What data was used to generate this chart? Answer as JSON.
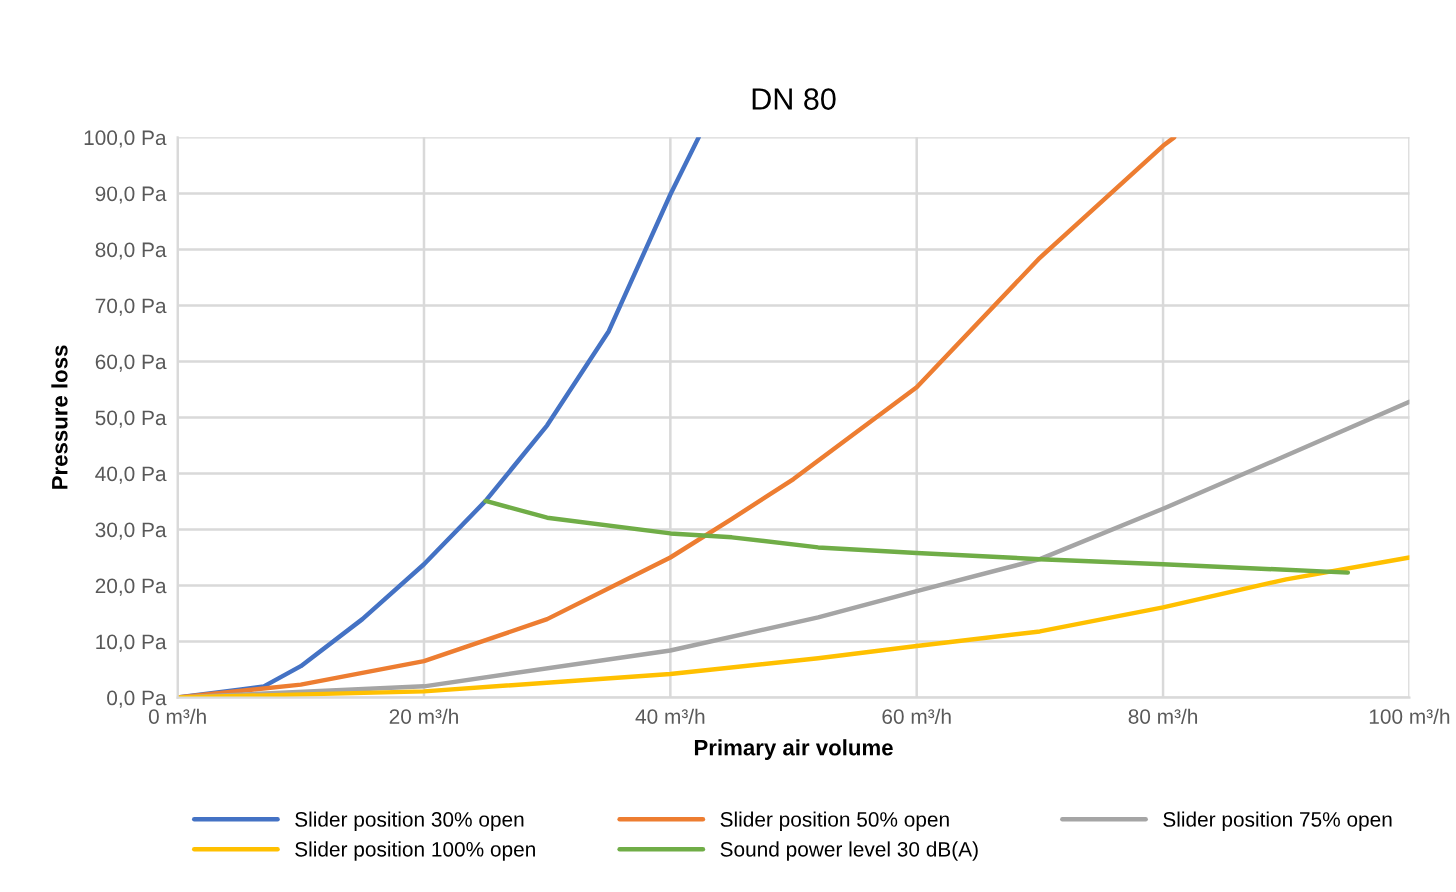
{
  "chart_data": {
    "type": "line",
    "title": "DN 80",
    "xlabel": "Primary air volume",
    "ylabel": "Pressure loss",
    "xlim": [
      0,
      100
    ],
    "ylim": [
      0,
      100
    ],
    "xticks": [
      {
        "value": 0,
        "label": "0 m³/h"
      },
      {
        "value": 20,
        "label": "20 m³/h"
      },
      {
        "value": 40,
        "label": "40 m³/h"
      },
      {
        "value": 60,
        "label": "60 m³/h"
      },
      {
        "value": 80,
        "label": "80 m³/h"
      },
      {
        "value": 100,
        "label": "100 m³/h"
      }
    ],
    "yticks": [
      {
        "value": 0,
        "label": "0,0 Pa"
      },
      {
        "value": 10,
        "label": "10,0 Pa"
      },
      {
        "value": 20,
        "label": "20,0 Pa"
      },
      {
        "value": 30,
        "label": "30,0 Pa"
      },
      {
        "value": 40,
        "label": "40,0 Pa"
      },
      {
        "value": 50,
        "label": "50,0 Pa"
      },
      {
        "value": 60,
        "label": "60,0 Pa"
      },
      {
        "value": 70,
        "label": "70,0 Pa"
      },
      {
        "value": 80,
        "label": "80,0 Pa"
      },
      {
        "value": 90,
        "label": "90,0 Pa"
      },
      {
        "value": 100,
        "label": "100,0 Pa"
      }
    ],
    "grid": true,
    "legend": "bottom",
    "marker": "none",
    "line_style": "solid",
    "series": [
      {
        "name": "Slider position 30% open",
        "color": "#4472c4",
        "x": [
          0,
          5,
          7,
          10,
          15,
          20,
          25,
          30,
          35,
          40,
          42.3
        ],
        "values": [
          0,
          1.4,
          2,
          5.6,
          14,
          23.8,
          35.1,
          48.6,
          65.4,
          89.8,
          100
        ]
      },
      {
        "name": "Slider position 50% open",
        "color": "#ed7d31",
        "x": [
          0,
          10,
          20,
          30,
          40,
          45,
          50,
          60,
          70,
          80,
          80.9
        ],
        "values": [
          0,
          2.3,
          6.5,
          14,
          25,
          31.9,
          39,
          55.4,
          78.5,
          98.5,
          100
        ]
      },
      {
        "name": "Slider position 75% open",
        "color": "#a5a5a5",
        "x": [
          0,
          20,
          40,
          52,
          60,
          70,
          80,
          90,
          100
        ],
        "values": [
          0,
          2,
          8.4,
          14.3,
          19,
          24.7,
          33.7,
          43.2,
          52.8
        ]
      },
      {
        "name": "Slider position 100% open",
        "color": "#ffc000",
        "x": [
          0,
          20,
          40,
          52,
          60,
          70,
          80,
          90,
          100
        ],
        "values": [
          0,
          1.1,
          4.2,
          7,
          9.2,
          11.8,
          16.1,
          21.1,
          25
        ]
      },
      {
        "name": "Sound power level 30 dB(A)",
        "color": "#70ad47",
        "x": [
          25,
          30,
          40,
          45,
          52,
          60,
          70,
          80,
          95
        ],
        "values": [
          35.1,
          32.1,
          29.3,
          28.6,
          26.8,
          25.8,
          24.7,
          23.8,
          22.3
        ]
      }
    ]
  }
}
